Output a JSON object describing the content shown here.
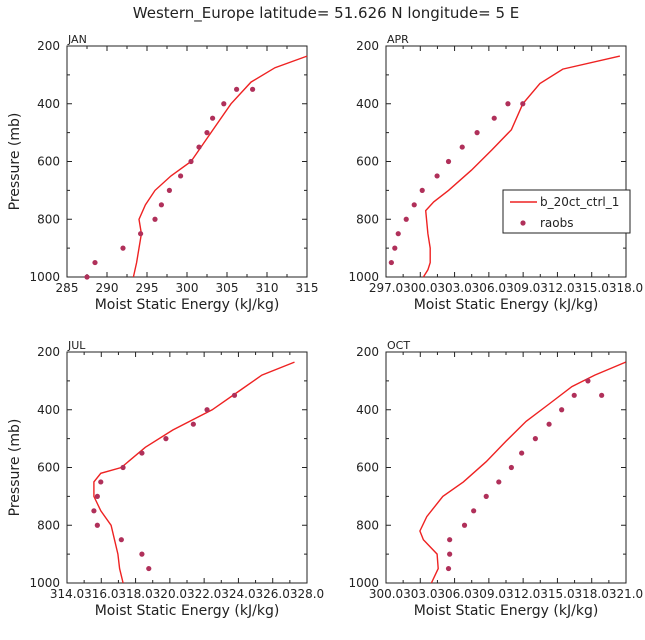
{
  "title": "Western_Europe  latitude= 51.626 N longitude= 5 E",
  "legend": {
    "line_label": "b_20ct_ctrl_1",
    "dot_label": "raobs"
  },
  "colors": {
    "model": "#ee2222",
    "obs": "#b0305a",
    "axis": "#222222"
  },
  "chart_data": [
    {
      "type": "line",
      "panel": "JAN",
      "xlabel": "Moist Static Energy (kJ/kg)",
      "ylabel": "Pressure (mb)",
      "xlim": [
        285,
        315
      ],
      "ylim": [
        1000,
        200
      ],
      "y_reversed": true,
      "xticks": [
        285,
        290,
        295,
        300,
        305,
        310,
        315
      ],
      "xtick_labels": [
        "285",
        "290",
        "295",
        "300",
        "305",
        "310",
        "315"
      ],
      "yticks": [
        200,
        400,
        600,
        800,
        1000
      ],
      "series": [
        {
          "kind": "line",
          "x": [
            293.3,
            293.7,
            294.0,
            294.3,
            294.0,
            294.8,
            296.0,
            298.0,
            300.5,
            303.0,
            305.5,
            308.0,
            311.0,
            315.0
          ],
          "y": [
            1000,
            950,
            900,
            850,
            800,
            750,
            700,
            650,
            600,
            500,
            400,
            325,
            275,
            235
          ]
        },
        {
          "kind": "scatter",
          "x": [
            287.5,
            288.5,
            292.0,
            294.2,
            296.0,
            296.8,
            297.8,
            299.2,
            300.5,
            301.5,
            302.5,
            303.2,
            304.6,
            306.2,
            308.2
          ],
          "y": [
            1000,
            950,
            900,
            850,
            800,
            750,
            700,
            650,
            600,
            550,
            500,
            450,
            400,
            350,
            350
          ]
        }
      ]
    },
    {
      "type": "line",
      "panel": "APR",
      "xlabel": "Moist Static Energy (kJ/kg)",
      "ylabel": "",
      "xlim": [
        297.03,
        318.03
      ],
      "ylim": [
        1000,
        200
      ],
      "y_reversed": true,
      "xticks": [
        297.03,
        300.03,
        303.03,
        306.03,
        309.03,
        312.03,
        315.03,
        318.03
      ],
      "xtick_labels": [
        "297.0",
        "300.0",
        "303.0",
        "306.0",
        "309.0",
        "312.0",
        "315.0",
        "318.0"
      ],
      "yticks": [
        200,
        400,
        600,
        800,
        1000
      ],
      "series": [
        {
          "name": "b_20ct_ctrl_1",
          "kind": "line",
          "x": [
            300.3,
            300.7,
            300.9,
            300.9,
            300.7,
            300.5,
            301.2,
            302.5,
            304.5,
            306.3,
            308.0,
            309.0,
            310.5,
            312.5,
            317.5
          ],
          "y": [
            1000,
            975,
            950,
            900,
            850,
            770,
            740,
            700,
            630,
            560,
            490,
            400,
            330,
            280,
            235
          ]
        },
        {
          "name": "raobs",
          "kind": "scatter",
          "x": [
            297.5,
            297.8,
            298.1,
            298.8,
            299.5,
            300.2,
            301.5,
            302.5,
            303.7,
            305.0,
            306.5,
            307.7,
            309.0
          ],
          "y": [
            950,
            900,
            850,
            800,
            750,
            700,
            650,
            600,
            550,
            500,
            450,
            400,
            400
          ]
        }
      ]
    },
    {
      "type": "line",
      "panel": "JUL",
      "xlabel": "Moist Static Energy (kJ/kg)",
      "ylabel": "Pressure (mb)",
      "xlim": [
        314.03,
        328.03
      ],
      "ylim": [
        1000,
        200
      ],
      "y_reversed": true,
      "xticks": [
        314.03,
        316.03,
        318.03,
        320.03,
        322.03,
        324.03,
        326.03,
        328.03
      ],
      "xtick_labels": [
        "314.0",
        "316.0",
        "318.0",
        "320.0",
        "322.0",
        "324.0",
        "326.0",
        "328.0"
      ],
      "yticks": [
        200,
        400,
        600,
        800,
        1000
      ],
      "series": [
        {
          "kind": "line",
          "x": [
            317.3,
            317.1,
            317.0,
            316.8,
            316.6,
            316.0,
            315.6,
            315.6,
            316.0,
            317.2,
            318.6,
            320.2,
            322.5,
            324.2,
            325.4,
            327.3
          ],
          "y": [
            1000,
            950,
            900,
            850,
            800,
            750,
            700,
            650,
            620,
            600,
            530,
            470,
            400,
            330,
            280,
            235
          ]
        },
        {
          "kind": "scatter",
          "x": [
            318.8,
            318.4,
            317.2,
            315.8,
            315.6,
            315.8,
            316.0,
            317.3,
            318.4,
            319.8,
            321.4,
            322.2,
            323.8
          ],
          "y": [
            950,
            900,
            850,
            800,
            750,
            700,
            650,
            600,
            550,
            500,
            450,
            400,
            350
          ]
        }
      ]
    },
    {
      "type": "line",
      "panel": "OCT",
      "xlabel": "Moist Static Energy (kJ/kg)",
      "ylabel": "",
      "xlim": [
        300.03,
        321.03
      ],
      "ylim": [
        1000,
        200
      ],
      "y_reversed": true,
      "xticks": [
        300.03,
        303.03,
        306.03,
        309.03,
        312.03,
        315.03,
        318.03,
        321.03
      ],
      "xtick_labels": [
        "300.0",
        "303.0",
        "306.0",
        "309.0",
        "312.0",
        "315.0",
        "318.0",
        "321.0"
      ],
      "yticks": [
        200,
        400,
        600,
        800,
        1000
      ],
      "series": [
        {
          "kind": "line",
          "x": [
            304.0,
            304.3,
            304.6,
            304.5,
            303.3,
            303.0,
            303.6,
            305.0,
            306.8,
            308.8,
            310.5,
            312.3,
            314.3,
            316.3,
            318.3,
            321.0
          ],
          "y": [
            1000,
            975,
            950,
            900,
            850,
            820,
            770,
            700,
            650,
            580,
            510,
            440,
            380,
            320,
            280,
            235
          ]
        },
        {
          "kind": "scatter",
          "x": [
            305.5,
            305.6,
            305.6,
            306.9,
            307.7,
            308.8,
            309.9,
            311.0,
            311.9,
            313.1,
            314.3,
            315.4,
            316.5,
            317.7,
            318.9
          ],
          "y": [
            950,
            900,
            850,
            800,
            750,
            700,
            650,
            600,
            550,
            500,
            450,
            400,
            350,
            300,
            350
          ]
        }
      ]
    }
  ]
}
